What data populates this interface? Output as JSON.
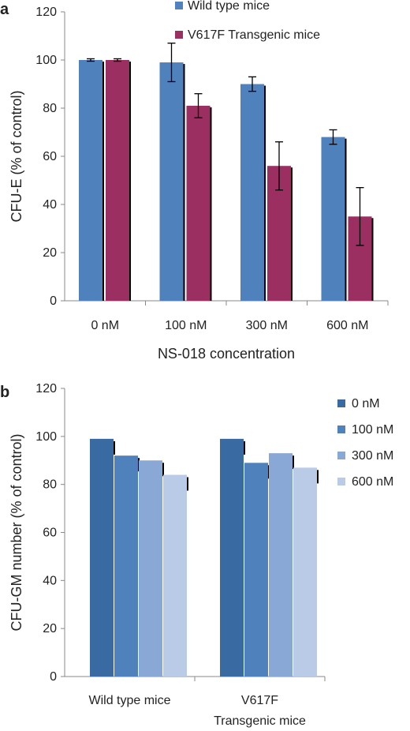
{
  "chart_data": [
    {
      "panel": "a",
      "type": "bar",
      "xlabel": "NS-018 concentration",
      "ylabel": "CFU-E (% of control)",
      "ylim": [
        0,
        120
      ],
      "yticks": [
        0,
        20,
        40,
        60,
        80,
        100,
        120
      ],
      "categories": [
        "0 nM",
        "100 nM",
        "300 nM",
        "600 nM"
      ],
      "legend_position": "top",
      "error_bars": true,
      "series": [
        {
          "name": "Wild type mice",
          "color": "#4f81bd",
          "values": [
            100,
            99,
            90,
            68
          ],
          "errors": [
            0.5,
            8,
            3,
            3
          ]
        },
        {
          "name": "V617F Transgenic mice",
          "color": "#9b2f62",
          "values": [
            100,
            81,
            56,
            35
          ],
          "errors": [
            0.5,
            5,
            10,
            12
          ]
        }
      ]
    },
    {
      "panel": "b",
      "type": "bar",
      "xlabel": "",
      "ylabel": "CFU-GM number (% of control)",
      "ylim": [
        0,
        120
      ],
      "yticks": [
        0,
        20,
        40,
        60,
        80,
        100,
        120
      ],
      "categories": [
        "Wild type mice",
        "V617F\nTransgenic mice"
      ],
      "legend_position": "right",
      "series": [
        {
          "name": "0 nM",
          "color": "#3a6aa2",
          "values": [
            99,
            99
          ]
        },
        {
          "name": "100 nM",
          "color": "#4f81bd",
          "values": [
            92,
            89
          ]
        },
        {
          "name": "300 nM",
          "color": "#89a8d5",
          "values": [
            90,
            93
          ]
        },
        {
          "name": "600 nM",
          "color": "#b9cbe6",
          "values": [
            84,
            87
          ]
        }
      ]
    }
  ]
}
